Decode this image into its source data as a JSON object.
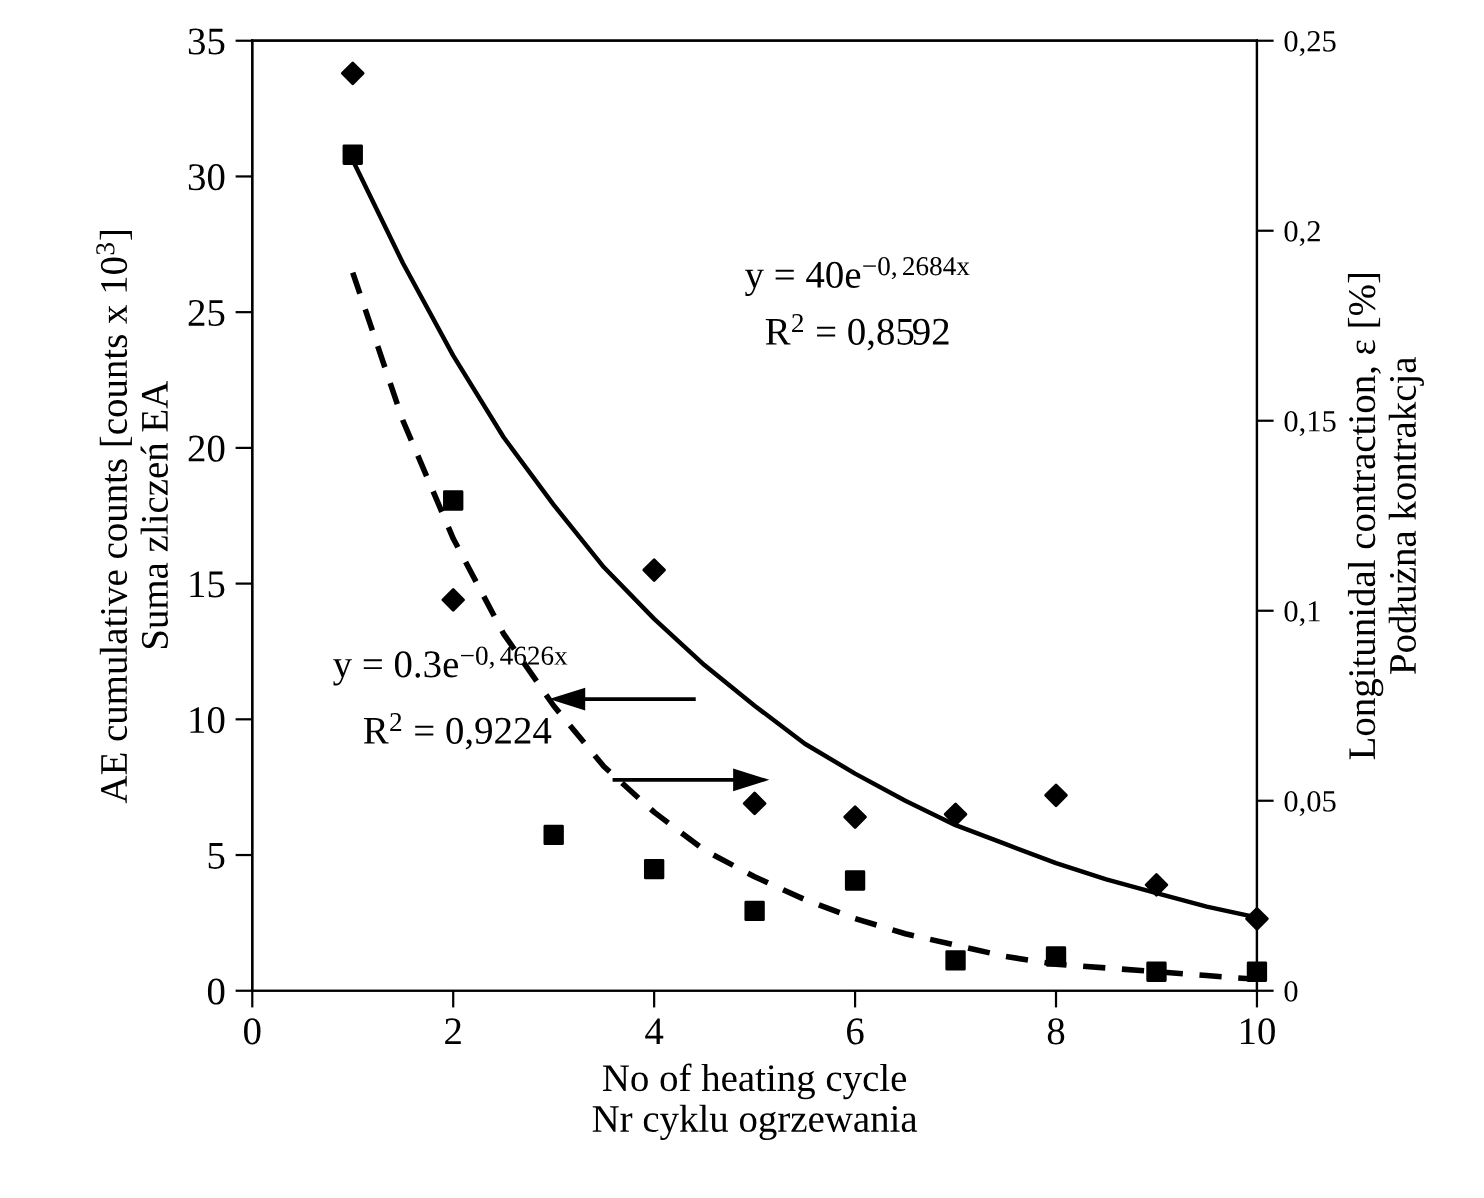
{
  "chart_data": {
    "type": "scatter",
    "xlabel": "No of heating cycle\nNr cyklu ogrzewania",
    "ylabel": "AE cumulative counts [counts x 10$^{3}$]\nSuma zliczeń EA",
    "y2label": "Longitunidal contraction, ε [%]\nPodłużna kontrakcja",
    "xlim": [
      0,
      10
    ],
    "xticks": [
      0,
      2,
      4,
      6,
      8,
      10
    ],
    "ylim": [
      0,
      35
    ],
    "yticks": [
      0,
      5,
      10,
      15,
      20,
      25,
      30,
      35
    ],
    "y2lim": [
      0,
      0.25
    ],
    "y2ticks": [
      0,
      {
        "value": 0.05,
        "label": "0,05"
      },
      {
        "value": 0.1,
        "label": "0,1"
      },
      {
        "value": 0.15,
        "label": "0,15"
      },
      {
        "value": 0.2,
        "label": "0,2"
      },
      {
        "value": 0.25,
        "label": "0,25"
      }
    ],
    "grid": false,
    "legend": false,
    "annotations": [
      "y = 40e$^{−0,2684x}$",
      "R$^{2}$ = 0,8592",
      "y = 0.3e$^{−0,4626x}$",
      "R$^{2}$ = 0,9224"
    ],
    "series": [
      {
        "marker": "diamond",
        "color": "#000000",
        "x": [
          1,
          2,
          4,
          5,
          6,
          7,
          8,
          9,
          10
        ],
        "values": [
          33.8,
          14.4,
          15.5,
          6.9,
          6.4,
          6.5,
          7.2,
          3.9,
          2.65
        ]
      },
      {
        "marker": "square",
        "color": "#000000",
        "axis": "y2",
        "x": [
          1,
          2,
          3,
          4,
          5,
          6,
          7,
          8,
          9,
          10
        ],
        "values": [
          0.22,
          0.129,
          0.041,
          0.032,
          0.021,
          0.029,
          0.008,
          0.009,
          0.005,
          0.005
        ]
      },
      {
        "type": "line",
        "line_style": "solid",
        "color": "#000000",
        "x": [
          1,
          1.5,
          2,
          2.5,
          3,
          3.5,
          4,
          4.5,
          5,
          5.5,
          6,
          6.5,
          7,
          7.5,
          8,
          8.5,
          9,
          9.5,
          10
        ],
        "values": [
          30.6,
          26.8,
          23.4,
          20.4,
          17.9,
          15.6,
          13.7,
          12.0,
          10.5,
          9.1,
          8.0,
          7.0,
          6.1,
          5.4,
          4.7,
          4.1,
          3.6,
          3.1,
          2.7
        ]
      },
      {
        "type": "line",
        "line_style": "dashed",
        "color": "#000000",
        "axis": "y2",
        "x": [
          1,
          1.5,
          2,
          2.5,
          3,
          3.5,
          4,
          4.5,
          5,
          5.5,
          6,
          6.5,
          7,
          7.5,
          8,
          8.5,
          9,
          9.5,
          10
        ],
        "values": [
          0.189,
          0.15,
          0.119,
          0.094,
          0.075,
          0.059,
          0.047,
          0.037,
          0.03,
          0.024,
          0.019,
          0.015,
          0.012,
          0.009,
          0.007,
          0.006,
          0.005,
          0.004,
          0.003
        ]
      }
    ]
  }
}
